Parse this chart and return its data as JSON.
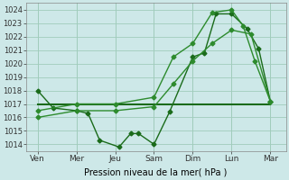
{
  "background_color": "#cde8e8",
  "grid_color": "#a0ccbb",
  "xlabel": "Pression niveau de la mer( hPa )",
  "x_tick_labels": [
    "Ven",
    "Mer",
    "Jeu",
    "Sam",
    "Dim",
    "Lun",
    "Mar"
  ],
  "x_tick_positions": [
    0,
    1,
    2,
    3,
    4,
    5,
    6
  ],
  "ylim": [
    1013.5,
    1024.5
  ],
  "yticks": [
    1014,
    1015,
    1016,
    1017,
    1018,
    1019,
    1020,
    1021,
    1022,
    1023,
    1024
  ],
  "series": [
    {
      "x": [
        0,
        0.4,
        1,
        1.3,
        1.6,
        2.1,
        2.4,
        2.6,
        3,
        3.4,
        4,
        4.3,
        4.6,
        5,
        5.4,
        5.7,
        6
      ],
      "y": [
        1018,
        1016.7,
        1016.5,
        1016.3,
        1014.3,
        1013.8,
        1014.8,
        1014.8,
        1014,
        1016.4,
        1020.5,
        1020.8,
        1023.7,
        1023.7,
        1022.6,
        1021.1,
        1017.2
      ],
      "color": "#1a6b1a",
      "lw": 1.0,
      "marker": "D",
      "markersize": 2.5
    },
    {
      "x": [
        0,
        6
      ],
      "y": [
        1017,
        1017
      ],
      "color": "#1a6b1a",
      "lw": 1.5,
      "marker": null,
      "markersize": 0
    },
    {
      "x": [
        0,
        1,
        2,
        3,
        3.5,
        4,
        4.5,
        5,
        5.5,
        6
      ],
      "y": [
        1016,
        1016.5,
        1016.5,
        1016.8,
        1018.5,
        1020.2,
        1021.5,
        1022.5,
        1022.2,
        1017.2
      ],
      "color": "#2d8b2d",
      "lw": 1.0,
      "marker": "D",
      "markersize": 2.5
    },
    {
      "x": [
        0,
        1,
        2,
        3,
        3.5,
        4,
        4.5,
        5,
        5.3,
        5.6,
        6
      ],
      "y": [
        1016.5,
        1017,
        1017,
        1017.5,
        1020.5,
        1021.5,
        1023.8,
        1024.0,
        1022.8,
        1020.2,
        1017.2
      ],
      "color": "#2d8b2d",
      "lw": 1.0,
      "marker": "D",
      "markersize": 2.5
    }
  ]
}
